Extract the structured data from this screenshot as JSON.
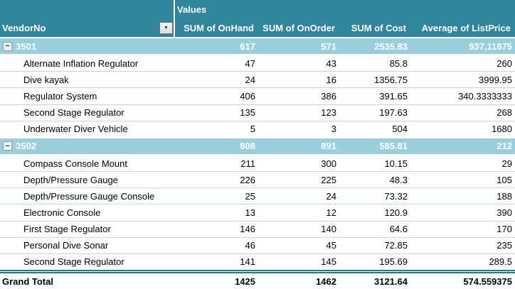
{
  "icons": {
    "dropdown_glyph": "▼",
    "collapse_glyph": "−"
  },
  "colors": {
    "header_bg": "#31859C",
    "group_bg": "#9BCEDC",
    "row_line": "#C3DEE9",
    "grand_line": "#26718C",
    "header_text": "#FFFFFF",
    "body_text": "#000000"
  },
  "header": {
    "values_label": "Values",
    "row_label": "VendorNo",
    "measures": [
      "SUM of OnHand",
      "SUM of OnOrder",
      "SUM of Cost",
      "Average of ListPrice"
    ]
  },
  "rows": [
    {
      "type": "group",
      "label": "3501",
      "values": [
        "617",
        "571",
        "2535.83",
        "937.11875"
      ]
    },
    {
      "type": "item",
      "label": "Alternate Inflation Regulator",
      "values": [
        "47",
        "43",
        "85.8",
        "260"
      ]
    },
    {
      "type": "item",
      "label": "Dive kayak",
      "values": [
        "24",
        "16",
        "1356.75",
        "3999.95"
      ]
    },
    {
      "type": "item",
      "label": "Regulator System",
      "values": [
        "406",
        "386",
        "391.65",
        "340.3333333"
      ]
    },
    {
      "type": "item",
      "label": "Second Stage Regulator",
      "values": [
        "135",
        "123",
        "197.63",
        "268"
      ]
    },
    {
      "type": "item",
      "label": "Underwater Diver Vehicle",
      "values": [
        "5",
        "3",
        "504",
        "1680"
      ]
    },
    {
      "type": "group",
      "label": "3502",
      "values": [
        "808",
        "891",
        "585.81",
        "212"
      ]
    },
    {
      "type": "item",
      "label": "Compass Console Mount",
      "values": [
        "211",
        "300",
        "10.15",
        "29"
      ]
    },
    {
      "type": "item",
      "label": "Depth/Pressure Gauge",
      "values": [
        "226",
        "225",
        "48.3",
        "105"
      ]
    },
    {
      "type": "item",
      "label": "Depth/Pressure Gauge Console",
      "values": [
        "25",
        "24",
        "73.32",
        "188"
      ]
    },
    {
      "type": "item",
      "label": "Electronic Console",
      "values": [
        "13",
        "12",
        "120.9",
        "390"
      ]
    },
    {
      "type": "item",
      "label": "First Stage Regulator",
      "values": [
        "146",
        "140",
        "64.6",
        "170"
      ]
    },
    {
      "type": "item",
      "label": "Personal Dive Sonar",
      "values": [
        "46",
        "45",
        "72.85",
        "235"
      ]
    },
    {
      "type": "item",
      "label": "Second Stage Regulator",
      "values": [
        "141",
        "145",
        "195.69",
        "289.5"
      ]
    },
    {
      "type": "grand",
      "label": "Grand Total",
      "values": [
        "1425",
        "1462",
        "3121.64",
        "574.559375"
      ]
    }
  ]
}
